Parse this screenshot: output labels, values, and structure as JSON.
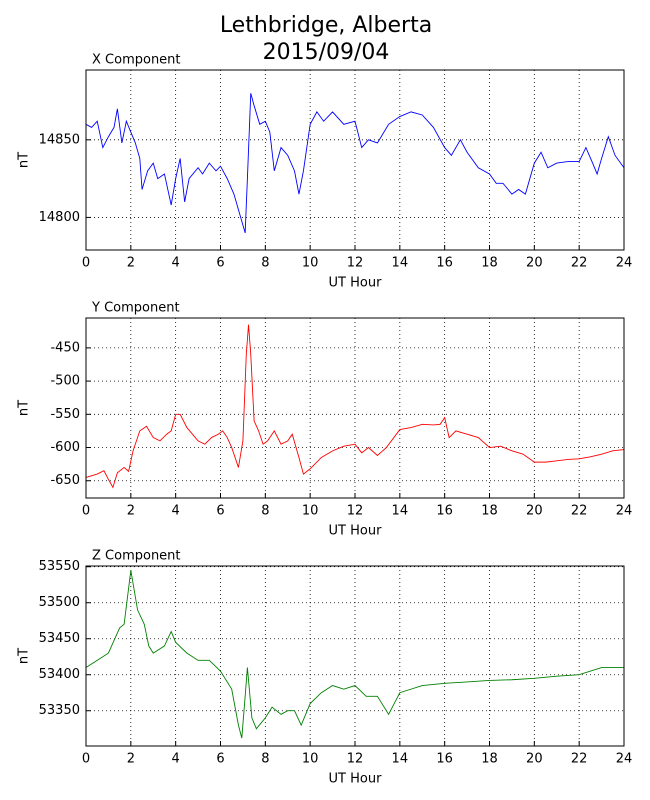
{
  "title": "Lethbridge, Alberta",
  "subtitle": "2015/09/04",
  "chart_data": [
    {
      "type": "line",
      "title": "X Component",
      "xlabel": "UT Hour",
      "ylabel": "nT",
      "grid": true,
      "xlim": [
        0,
        24
      ],
      "xticks": [
        0,
        2,
        4,
        6,
        8,
        10,
        12,
        14,
        16,
        18,
        20,
        22,
        24
      ],
      "ylim": [
        14779,
        14895
      ],
      "yticks": [
        14800,
        14850
      ],
      "x": [
        0,
        0.25,
        0.5,
        0.75,
        1,
        1.25,
        1.4,
        1.6,
        1.8,
        2,
        2.2,
        2.4,
        2.5,
        2.75,
        3,
        3.2,
        3.5,
        3.8,
        4,
        4.2,
        4.4,
        4.6,
        5,
        5.2,
        5.5,
        5.8,
        6,
        6.3,
        6.6,
        6.9,
        7.1,
        7.2,
        7.35,
        7.5,
        7.75,
        8,
        8.2,
        8.4,
        8.7,
        9,
        9.3,
        9.5,
        9.7,
        10,
        10.3,
        10.6,
        11,
        11.5,
        12,
        12.3,
        12.6,
        13,
        13.5,
        14,
        14.5,
        15,
        15.5,
        16,
        16.3,
        16.7,
        17,
        17.5,
        18,
        18.3,
        18.6,
        19,
        19.3,
        19.6,
        20,
        20.3,
        20.6,
        21,
        21.5,
        22,
        22.3,
        22.6,
        22.8,
        23,
        23.3,
        23.6,
        24
      ],
      "series": [
        {
          "name": "X",
          "color": "#0000ff",
          "values": [
            14860,
            14858,
            14862,
            14845,
            14852,
            14858,
            14870,
            14848,
            14862,
            14855,
            14848,
            14838,
            14818,
            14830,
            14835,
            14825,
            14828,
            14808,
            14825,
            14838,
            14810,
            14825,
            14832,
            14828,
            14835,
            14830,
            14833,
            14825,
            14815,
            14800,
            14790,
            14825,
            14880,
            14872,
            14860,
            14862,
            14855,
            14830,
            14845,
            14840,
            14830,
            14815,
            14830,
            14860,
            14868,
            14862,
            14868,
            14860,
            14862,
            14845,
            14850,
            14848,
            14860,
            14865,
            14868,
            14866,
            14858,
            14845,
            14840,
            14850,
            14842,
            14832,
            14828,
            14822,
            14822,
            14815,
            14818,
            14815,
            14835,
            14842,
            14832,
            14835,
            14836,
            14836,
            14845,
            14835,
            14828,
            14838,
            14852,
            14840,
            14832
          ]
        }
      ]
    },
    {
      "type": "line",
      "title": "Y Component",
      "xlabel": "UT Hour",
      "ylabel": "nT",
      "grid": true,
      "xlim": [
        0,
        24
      ],
      "xticks": [
        0,
        2,
        4,
        6,
        8,
        10,
        12,
        14,
        16,
        18,
        20,
        22,
        24
      ],
      "ylim": [
        -676,
        -405
      ],
      "yticks": [
        -650,
        -600,
        -550,
        -500,
        -450
      ],
      "x": [
        0,
        0.5,
        0.8,
        1,
        1.2,
        1.4,
        1.7,
        1.9,
        2.1,
        2.4,
        2.7,
        3,
        3.3,
        3.6,
        3.8,
        4,
        4.2,
        4.5,
        5,
        5.3,
        5.6,
        5.9,
        6.1,
        6.3,
        6.5,
        6.8,
        7,
        7.15,
        7.25,
        7.35,
        7.5,
        7.7,
        7.9,
        8.1,
        8.4,
        8.7,
        9,
        9.2,
        9.5,
        9.7,
        10,
        10.5,
        11,
        11.5,
        12,
        12.3,
        12.6,
        13,
        13.4,
        14,
        14.5,
        15,
        15.5,
        15.8,
        16,
        16.2,
        16.5,
        17,
        17.5,
        18,
        18.5,
        19,
        19.5,
        20,
        20.5,
        21,
        21.5,
        22,
        22.5,
        23,
        23.5,
        24
      ],
      "series": [
        {
          "name": "Y",
          "color": "#ff0000",
          "values": [
            -645,
            -640,
            -635,
            -648,
            -660,
            -638,
            -630,
            -636,
            -605,
            -575,
            -568,
            -585,
            -590,
            -580,
            -575,
            -550,
            -550,
            -570,
            -590,
            -595,
            -585,
            -580,
            -575,
            -585,
            -600,
            -630,
            -590,
            -460,
            -415,
            -460,
            -560,
            -575,
            -595,
            -590,
            -575,
            -595,
            -590,
            -580,
            -615,
            -640,
            -632,
            -615,
            -605,
            -598,
            -595,
            -608,
            -600,
            -612,
            -600,
            -573,
            -570,
            -565,
            -566,
            -565,
            -555,
            -585,
            -575,
            -580,
            -585,
            -600,
            -598,
            -605,
            -610,
            -622,
            -622,
            -620,
            -618,
            -617,
            -614,
            -610,
            -605,
            -603
          ]
        }
      ]
    },
    {
      "type": "line",
      "title": "Z Component",
      "xlabel": "UT Hour",
      "ylabel": "nT",
      "grid": true,
      "xlim": [
        0,
        24
      ],
      "xticks": [
        0,
        2,
        4,
        6,
        8,
        10,
        12,
        14,
        16,
        18,
        20,
        22,
        24
      ],
      "ylim": [
        53301,
        53551
      ],
      "yticks": [
        53350,
        53400,
        53450,
        53500,
        53550
      ],
      "x": [
        0,
        0.5,
        1,
        1.5,
        1.7,
        2,
        2.3,
        2.6,
        2.8,
        3,
        3.5,
        3.8,
        4,
        4.5,
        5,
        5.5,
        6,
        6.5,
        6.8,
        6.95,
        7.1,
        7.2,
        7.4,
        7.6,
        8,
        8.3,
        8.7,
        9,
        9.3,
        9.6,
        10,
        10.5,
        11,
        11.5,
        12,
        12.5,
        13,
        13.5,
        14,
        14.5,
        15,
        16,
        17,
        18,
        19,
        20,
        21,
        22,
        23,
        24
      ],
      "series": [
        {
          "name": "Z",
          "color": "#008000",
          "values": [
            53410,
            53420,
            53430,
            53465,
            53470,
            53545,
            53490,
            53470,
            53440,
            53430,
            53440,
            53460,
            53445,
            53430,
            53420,
            53420,
            53405,
            53380,
            53330,
            53312,
            53370,
            53410,
            53340,
            53325,
            53340,
            53355,
            53345,
            53350,
            53350,
            53330,
            53360,
            53375,
            53385,
            53380,
            53385,
            53370,
            53370,
            53345,
            53375,
            53380,
            53385,
            53388,
            53390,
            53392,
            53393,
            53395,
            53398,
            53400,
            53410,
            53410
          ]
        }
      ]
    }
  ]
}
